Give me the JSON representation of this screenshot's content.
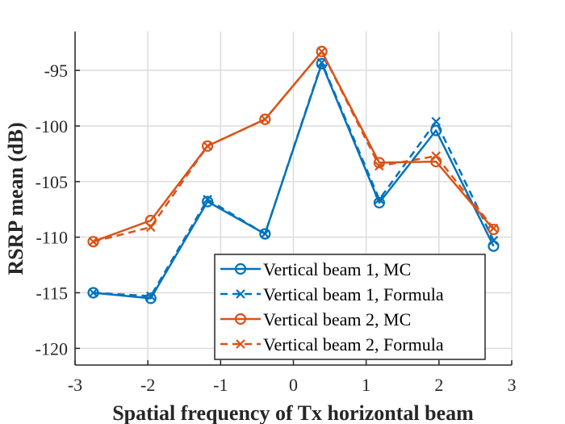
{
  "chart_data": {
    "type": "line",
    "title": "",
    "xlabel": "Spatial frequency of Tx horizontal beam",
    "ylabel": "RSRP mean (dB)",
    "xlim": [
      -3,
      3
    ],
    "ylim": [
      -121.5,
      -91.5
    ],
    "xticks": [
      -3,
      -2,
      -1,
      0,
      1,
      2,
      3
    ],
    "yticks": [
      -95,
      -100,
      -105,
      -110,
      -115,
      -120
    ],
    "grid": true,
    "legend_position": "bottom-right",
    "x": [
      -2.75,
      -1.96,
      -1.18,
      -0.39,
      0.39,
      1.18,
      1.96,
      2.75
    ],
    "series": [
      {
        "name": "Vertical beam 1, MC",
        "color": "#0072BD",
        "linestyle": "solid",
        "marker": "circle",
        "values": [
          -115.0,
          -115.5,
          -106.8,
          -109.7,
          -94.4,
          -106.9,
          -100.4,
          -110.8
        ]
      },
      {
        "name": "Vertical beam 1, Formula",
        "color": "#0072BD",
        "linestyle": "dashed",
        "marker": "x",
        "values": [
          -115.0,
          -115.3,
          -106.6,
          -109.7,
          -94.3,
          -106.6,
          -99.6,
          -110.3
        ]
      },
      {
        "name": "Vertical beam 2, MC",
        "color": "#D95319",
        "linestyle": "solid",
        "marker": "circle",
        "values": [
          -110.4,
          -108.5,
          -101.8,
          -99.4,
          -93.3,
          -103.3,
          -103.2,
          -109.3
        ]
      },
      {
        "name": "Vertical beam 2, Formula",
        "color": "#D95319",
        "linestyle": "dashed",
        "marker": "x",
        "values": [
          -110.4,
          -109.1,
          -101.8,
          -99.4,
          -93.3,
          -103.6,
          -102.7,
          -109.2
        ]
      }
    ]
  }
}
